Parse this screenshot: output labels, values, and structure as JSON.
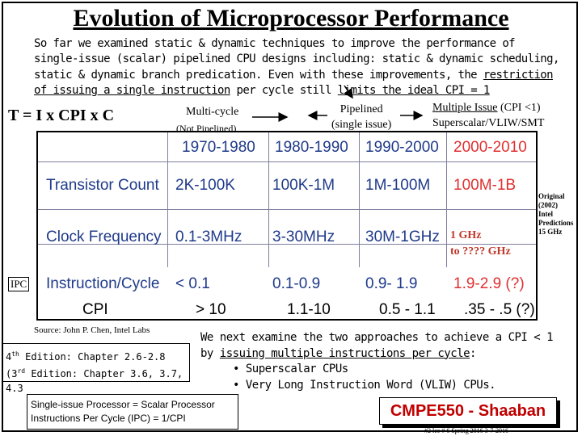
{
  "title": "Evolution of Microprocessor Performance",
  "intro": {
    "p1": "So far we examined static & dynamic techniques to improve the performance of  single-issue (scalar) pipelined CPU designs including: static & dynamic scheduling,  static & dynamic branch predication.   Even with these improvements, the ",
    "p2": "restriction of issuing a single instruction",
    "p3": " per cycle still ",
    "p4": "limits the ideal CPI = 1"
  },
  "formula": "T = I x CPI x C",
  "labels": {
    "multicycle": "Multi-cycle",
    "not_pipelined": "(Not Pipelined)",
    "pipelined": "Pipelined",
    "single_issue": "(single issue)",
    "multiple_issue": "Multiple Issue",
    "cpi_lt1": "(CPI <1)",
    "superscalar": "Superscalar/VLIW/SMT",
    "ipc": "IPC",
    "original": "Original",
    "year": "(2002)",
    "intel": "Intel",
    "predictions": "Predictions",
    "ghz15": "15 GHz",
    "ghz_line1": "1 GHz",
    "ghz_line2": "to  ???? GHz"
  },
  "table": {
    "headers": [
      "1970-1980",
      "1980-1990",
      "1990-2000",
      "2000-2010"
    ],
    "rows": [
      {
        "label": "Transistor Count",
        "values": [
          "2K-100K",
          "100K-1M",
          "1M-100M",
          "100M-1B"
        ]
      },
      {
        "label": "Clock Frequency",
        "values": [
          "0.1-3MHz",
          "3-30MHz",
          "30M-1GHz",
          ""
        ]
      },
      {
        "label": "Instruction/Cycle",
        "values": [
          "< 0.1",
          "0.1-0.9",
          "0.9- 1.9",
          "1.9-2.9 (?)"
        ]
      }
    ],
    "cpi_label": "CPI",
    "cpi_values": [
      "> 10",
      "1.1-10",
      "0.5 - 1.1",
      ".35  -  .5 (?)"
    ]
  },
  "source": "Source:  John P. Chen, Intel Labs",
  "edition": {
    "line1_num": "4",
    "line1_sup": "th",
    "line1_rest": " Edition: Chapter 2.6-2.8",
    "line2_num": "(3",
    "line2_sup": "rd",
    "line2_rest": " Edition: Chapter 3.6, 3.7, 4.3"
  },
  "next": {
    "line1": "We next examine the two approaches to achieve  a CPI < 1",
    "line2a": "by ",
    "line2b": "issuing  multiple instructions per cycle",
    "line2c": ":",
    "bullet1": "• Superscalar CPUs",
    "bullet2": "• Very Long Instruction Word (VLIW) CPUs."
  },
  "single_issue_box": {
    "line1": "Single-issue Processor = Scalar Processor",
    "line2": "Instructions Per Cycle (IPC) = 1/CPI"
  },
  "brand": "CMPE550 - Shaaban",
  "footer": "#2   lec # 6   Spring 2016  3-7-2016"
}
